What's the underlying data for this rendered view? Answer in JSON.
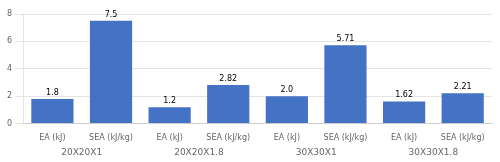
{
  "chart_data": {
    "type": "bar",
    "categories": [
      "20X20X1",
      "20X20X1.8",
      "30X30X1",
      "30X30X1.8"
    ],
    "series": [
      {
        "name": "EA (kJ)",
        "color": "#4472C4",
        "values": [
          1.8,
          1.2,
          2.0,
          1.62
        ],
        "value_labels": [
          "1.8",
          "1.2",
          "2.0",
          "1.62"
        ]
      },
      {
        "name": "SEA (kJ/kg)",
        "color": "#4472C4",
        "values": [
          7.5,
          2.82,
          5.71,
          2.21
        ],
        "value_labels": [
          "7.5",
          "2.82",
          "5.71",
          "2.21"
        ]
      }
    ],
    "ylim": [
      0,
      8
    ],
    "yticks": [
      0,
      2,
      4,
      6,
      8
    ],
    "grid": true,
    "data_labels": true
  }
}
